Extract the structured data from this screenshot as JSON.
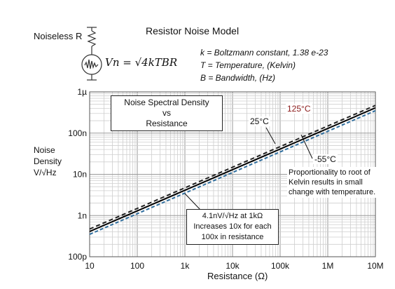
{
  "header": {
    "title": "Resistor Noise Model",
    "resistor_label": "Noiseless R",
    "formula": "Vn = √4kTBR",
    "definitions": [
      "k = Boltzmann constant,  1.38 e-23",
      "T = Temperature, (Kelvin)",
      "B = Bandwidth, (Hz)"
    ]
  },
  "chart_data": {
    "type": "line",
    "title": "Noise Spectral Density vs Resistance",
    "title_lines": [
      "Noise Spectral Density",
      "vs",
      "Resistance"
    ],
    "xlabel": "Resistance (Ω)",
    "ylabel_lines": [
      "Noise",
      "Density",
      "V/√Hz"
    ],
    "x_scale": "log",
    "y_scale": "log",
    "xlim": [
      10,
      10000000
    ],
    "ylim": [
      1e-10,
      1e-06
    ],
    "grid": true,
    "x_ticks": [
      10,
      100,
      1000,
      10000,
      100000,
      1000000,
      10000000
    ],
    "x_tick_labels": [
      "10",
      "100",
      "1k",
      "10k",
      "100k",
      "1M",
      "10M"
    ],
    "y_ticks": [
      1e-10,
      1e-09,
      1e-08,
      1e-07,
      1e-06
    ],
    "y_tick_labels": [
      "100p",
      "1n",
      "10n",
      "100n",
      "1µ"
    ],
    "series": [
      {
        "name": "125°C",
        "color": "#222222",
        "dash": "6,4",
        "x": [
          10,
          10000000
        ],
        "y": [
          4.7e-10,
          4.7e-07
        ]
      },
      {
        "name": "25°C",
        "color": "#000000",
        "dash": "",
        "x": [
          10,
          10000000
        ],
        "y": [
          4.1e-10,
          4.1e-07
        ]
      },
      {
        "name": "-55°C",
        "color": "#2f6e9e",
        "dash": "5,3",
        "x": [
          10,
          10000000
        ],
        "y": [
          3.5e-10,
          3.5e-07
        ]
      }
    ],
    "series_label_colors": {
      "125°C": "#8b1a1a",
      "25°C": "#000000",
      "-55°C": "#1a1a1a"
    },
    "annotations": {
      "proportionality": [
        "Proportionality to root of",
        "Kelvin results in small",
        "change with temperature."
      ],
      "reference": [
        "4.1nV/√Hz at 1kΩ",
        "Increases 10x for each",
        "100x in resistance"
      ]
    }
  }
}
